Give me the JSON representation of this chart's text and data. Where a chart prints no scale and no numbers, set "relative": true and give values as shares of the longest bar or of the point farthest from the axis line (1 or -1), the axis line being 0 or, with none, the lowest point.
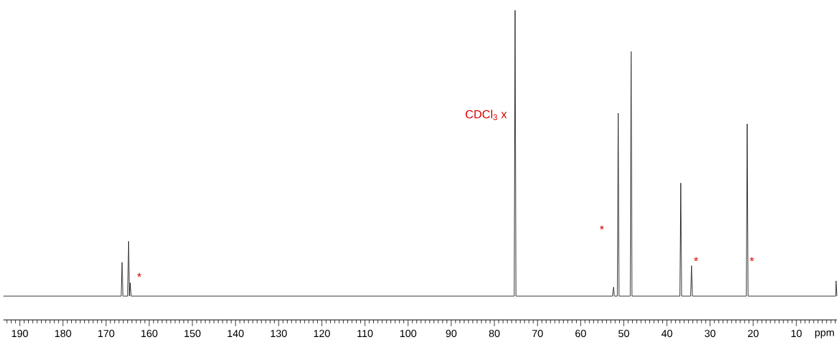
{
  "chart_data": {
    "type": "line",
    "relative": true,
    "xlabel": "ppm",
    "xlim": [
      193.8,
      0.6
    ],
    "xticks": [
      190,
      180,
      170,
      160,
      150,
      140,
      130,
      120,
      110,
      100,
      90,
      80,
      70,
      60,
      50,
      40,
      30,
      20,
      10,
      {
        "value": 193,
        "label": null
      },
      {
        "value": 192,
        "label": null
      },
      {
        "value": 191,
        "label": null
      },
      {
        "value": 189,
        "label": null
      },
      {
        "value": 188,
        "label": null
      },
      {
        "value": 187,
        "label": null
      },
      {
        "value": 186,
        "label": null
      },
      {
        "value": 185,
        "label": null
      },
      {
        "value": 184,
        "label": null
      },
      {
        "value": 183,
        "label": null
      },
      {
        "value": 182,
        "label": null
      },
      {
        "value": 181,
        "label": null
      },
      {
        "value": 179,
        "label": null
      },
      {
        "value": 178,
        "label": null
      },
      {
        "value": 177,
        "label": null
      },
      {
        "value": 176,
        "label": null
      },
      {
        "value": 175,
        "label": null
      },
      {
        "value": 174,
        "label": null
      },
      {
        "value": 173,
        "label": null
      },
      {
        "value": 172,
        "label": null
      },
      {
        "value": 171,
        "label": null
      },
      {
        "value": 169,
        "label": null
      },
      {
        "value": 168,
        "label": null
      },
      {
        "value": 167,
        "label": null
      },
      {
        "value": 166,
        "label": null
      },
      {
        "value": 165,
        "label": null
      },
      {
        "value": 164,
        "label": null
      },
      {
        "value": 163,
        "label": null
      },
      {
        "value": 162,
        "label": null
      },
      {
        "value": 161,
        "label": null
      },
      {
        "value": 159,
        "label": null
      },
      {
        "value": 158,
        "label": null
      },
      {
        "value": 157,
        "label": null
      },
      {
        "value": 156,
        "label": null
      },
      {
        "value": 155,
        "label": null
      },
      {
        "value": 154,
        "label": null
      },
      {
        "value": 153,
        "label": null
      },
      {
        "value": 152,
        "label": null
      },
      {
        "value": 151,
        "label": null
      },
      {
        "value": 149,
        "label": null
      },
      {
        "value": 148,
        "label": null
      },
      {
        "value": 147,
        "label": null
      },
      {
        "value": 146,
        "label": null
      },
      {
        "value": 145,
        "label": null
      },
      {
        "value": 144,
        "label": null
      },
      {
        "value": 143,
        "label": null
      },
      {
        "value": 142,
        "label": null
      },
      {
        "value": 141,
        "label": null
      },
      {
        "value": 139,
        "label": null
      },
      {
        "value": 138,
        "label": null
      },
      {
        "value": 137,
        "label": null
      },
      {
        "value": 136,
        "label": null
      },
      {
        "value": 135,
        "label": null
      },
      {
        "value": 134,
        "label": null
      },
      {
        "value": 133,
        "label": null
      },
      {
        "value": 132,
        "label": null
      },
      {
        "value": 131,
        "label": null
      },
      {
        "value": 129,
        "label": null
      },
      {
        "value": 128,
        "label": null
      },
      {
        "value": 127,
        "label": null
      },
      {
        "value": 126,
        "label": null
      },
      {
        "value": 125,
        "label": null
      },
      {
        "value": 124,
        "label": null
      },
      {
        "value": 123,
        "label": null
      },
      {
        "value": 122,
        "label": null
      },
      {
        "value": 121,
        "label": null
      },
      {
        "value": 119,
        "label": null
      },
      {
        "value": 118,
        "label": null
      },
      {
        "value": 117,
        "label": null
      },
      {
        "value": 116,
        "label": null
      },
      {
        "value": 115,
        "label": null
      },
      {
        "value": 114,
        "label": null
      },
      {
        "value": 113,
        "label": null
      },
      {
        "value": 112,
        "label": null
      },
      {
        "value": 111,
        "label": null
      },
      {
        "value": 109,
        "label": null
      },
      {
        "value": 108,
        "label": null
      },
      {
        "value": 107,
        "label": null
      },
      {
        "value": 106,
        "label": null
      },
      {
        "value": 105,
        "label": null
      },
      {
        "value": 104,
        "label": null
      },
      {
        "value": 103,
        "label": null
      },
      {
        "value": 102,
        "label": null
      },
      {
        "value": 101,
        "label": null
      },
      {
        "value": 99,
        "label": null
      },
      {
        "value": 98,
        "label": null
      },
      {
        "value": 97,
        "label": null
      },
      {
        "value": 96,
        "label": null
      },
      {
        "value": 95,
        "label": null
      },
      {
        "value": 94,
        "label": null
      },
      {
        "value": 93,
        "label": null
      },
      {
        "value": 92,
        "label": null
      },
      {
        "value": 91,
        "label": null
      },
      {
        "value": 89,
        "label": null
      },
      {
        "value": 88,
        "label": null
      },
      {
        "value": 87,
        "label": null
      },
      {
        "value": 86,
        "label": null
      },
      {
        "value": 85,
        "label": null
      },
      {
        "value": 84,
        "label": null
      },
      {
        "value": 83,
        "label": null
      },
      {
        "value": 82,
        "label": null
      },
      {
        "value": 81,
        "label": null
      },
      {
        "value": 79,
        "label": null
      },
      {
        "value": 78,
        "label": null
      },
      {
        "value": 77,
        "label": null
      },
      {
        "value": 76,
        "label": null
      },
      {
        "value": 75,
        "label": null
      },
      {
        "value": 74,
        "label": null
      },
      {
        "value": 73,
        "label": null
      },
      {
        "value": 72,
        "label": null
      },
      {
        "value": 71,
        "label": null
      },
      {
        "value": 69,
        "label": null
      },
      {
        "value": 68,
        "label": null
      },
      {
        "value": 67,
        "label": null
      },
      {
        "value": 66,
        "label": null
      },
      {
        "value": 65,
        "label": null
      },
      {
        "value": 64,
        "label": null
      },
      {
        "value": 63,
        "label": null
      },
      {
        "value": 62,
        "label": null
      },
      {
        "value": 61,
        "label": null
      },
      {
        "value": 59,
        "label": null
      },
      {
        "value": 58,
        "label": null
      },
      {
        "value": 57,
        "label": null
      },
      {
        "value": 56,
        "label": null
      },
      {
        "value": 55,
        "label": null
      },
      {
        "value": 54,
        "label": null
      },
      {
        "value": 53,
        "label": null
      },
      {
        "value": 52,
        "label": null
      },
      {
        "value": 51,
        "label": null
      },
      {
        "value": 49,
        "label": null
      },
      {
        "value": 48,
        "label": null
      },
      {
        "value": 47,
        "label": null
      },
      {
        "value": 46,
        "label": null
      },
      {
        "value": 45,
        "label": null
      },
      {
        "value": 44,
        "label": null
      },
      {
        "value": 43,
        "label": null
      },
      {
        "value": 42,
        "label": null
      },
      {
        "value": 41,
        "label": null
      },
      {
        "value": 39,
        "label": null
      },
      {
        "value": 38,
        "label": null
      },
      {
        "value": 37,
        "label": null
      },
      {
        "value": 36,
        "label": null
      },
      {
        "value": 35,
        "label": null
      },
      {
        "value": 34,
        "label": null
      },
      {
        "value": 33,
        "label": null
      },
      {
        "value": 32,
        "label": null
      },
      {
        "value": 31,
        "label": null
      },
      {
        "value": 29,
        "label": null
      },
      {
        "value": 28,
        "label": null
      },
      {
        "value": 27,
        "label": null
      },
      {
        "value": 26,
        "label": null
      },
      {
        "value": 25,
        "label": null
      },
      {
        "value": 24,
        "label": null
      },
      {
        "value": 23,
        "label": null
      },
      {
        "value": 22,
        "label": null
      },
      {
        "value": 21,
        "label": null
      },
      {
        "value": 19,
        "label": null
      },
      {
        "value": 18,
        "label": null
      },
      {
        "value": 17,
        "label": null
      },
      {
        "value": 16,
        "label": null
      },
      {
        "value": 15,
        "label": null
      },
      {
        "value": 14,
        "label": null
      },
      {
        "value": 13,
        "label": null
      },
      {
        "value": 12,
        "label": null
      },
      {
        "value": 11,
        "label": null
      },
      {
        "value": 9,
        "label": null
      },
      {
        "value": 8,
        "label": null
      },
      {
        "value": 7,
        "label": null
      },
      {
        "value": 6,
        "label": null
      },
      {
        "value": 5,
        "label": null
      },
      {
        "value": 4,
        "label": null
      },
      {
        "value": 3,
        "label": null
      },
      {
        "value": 2,
        "label": null
      },
      {
        "value": 1,
        "label": null
      }
    ],
    "series": [
      {
        "color": "#1a1a1a",
        "x": [
          193.8,
          166.5,
          166.3,
          166.1,
          165.0,
          164.8,
          164.6,
          164.4,
          164.2,
          75.4,
          75.2,
          75.0,
          52.6,
          52.4,
          52.2,
          51.5,
          51.3,
          51.1,
          48.5,
          48.3,
          48.1,
          37.0,
          36.8,
          36.6,
          34.5,
          34.3,
          34.1,
          21.6,
          21.4,
          21.2,
          0.9,
          0.8,
          0.6
        ],
        "values": [
          0.077,
          0.077,
          0.186,
          0.077,
          0.077,
          0.254,
          0.077,
          0.12,
          0.077,
          0.077,
          1.0,
          0.077,
          0.077,
          0.106,
          0.077,
          0.077,
          0.668,
          0.077,
          0.077,
          0.867,
          0.077,
          0.077,
          0.442,
          0.077,
          0.077,
          0.175,
          0.077,
          0.077,
          0.633,
          0.077,
          0.077,
          0.126,
          0.077
        ]
      }
    ],
    "annotations": [
      "CDCl$_{3}$ x",
      "*",
      "*",
      "*",
      "*"
    ]
  }
}
